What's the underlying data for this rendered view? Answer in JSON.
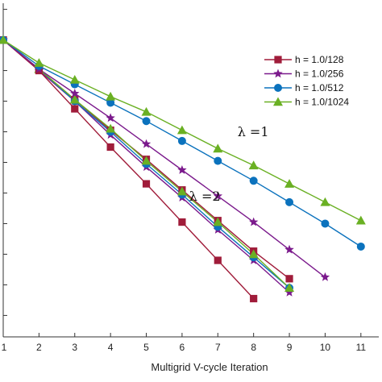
{
  "chart_data": {
    "type": "line",
    "xlabel": "Multigrid V-cycle Iteration",
    "ylabel": "",
    "x_ticks": [
      "1",
      "2",
      "3",
      "4",
      "5",
      "6",
      "7",
      "8",
      "9",
      "10",
      "11"
    ],
    "xlim": [
      1,
      11.5
    ],
    "y_scale": "log",
    "ylim": [
      -9.7,
      1.2
    ],
    "y_minor_ticks": [
      -9,
      -8,
      -7,
      -6,
      -5,
      -4,
      -3,
      -2,
      -1,
      0,
      1
    ],
    "legend_placement": "top-right",
    "series": [
      {
        "name": "h = 1.0/128",
        "color": "#a01c3a",
        "marker": "square",
        "x": [
          1,
          2,
          3,
          4,
          5,
          6,
          7,
          8
        ],
        "log10_y": [
          0,
          -1.0,
          -2.25,
          -3.5,
          -4.7,
          -5.95,
          -7.2,
          -8.45
        ]
      },
      {
        "name": "h = 1.0/256",
        "color": "#7b1a8c",
        "marker": "star",
        "x": [
          1,
          2,
          3,
          4,
          5,
          6,
          7,
          8,
          9,
          10
        ],
        "log10_y": [
          0,
          -0.95,
          -1.75,
          -2.55,
          -3.4,
          -4.25,
          -5.1,
          -5.95,
          -6.85,
          -7.75
        ]
      },
      {
        "name": "h = 1.0/512",
        "color": "#0b72bd",
        "marker": "circle",
        "x": [
          1,
          2,
          3,
          4,
          5,
          6,
          7,
          8,
          9,
          10,
          11
        ],
        "log10_y": [
          0,
          -0.85,
          -1.45,
          -2.05,
          -2.65,
          -3.3,
          -3.95,
          -4.6,
          -5.3,
          -6.0,
          -6.75
        ]
      },
      {
        "name": "h = 1.0/1024",
        "color": "#6ab023",
        "marker": "triangle",
        "x": [
          1,
          2,
          3,
          4,
          5,
          6,
          7,
          8,
          9,
          10,
          11
        ],
        "log10_y": [
          0,
          -0.75,
          -1.3,
          -1.85,
          -2.35,
          -2.95,
          -3.55,
          -4.1,
          -4.7,
          -5.3,
          -5.9
        ]
      }
    ],
    "secondary_series": [
      {
        "color": "#a01c3a",
        "marker": "square",
        "x": [
          1,
          2,
          3,
          4,
          5,
          6,
          7,
          8,
          9
        ],
        "log10_y": [
          0,
          -0.95,
          -1.95,
          -2.95,
          -3.9,
          -4.9,
          -5.9,
          -6.9,
          -7.8
        ]
      },
      {
        "color": "#7b1a8c",
        "marker": "star",
        "x": [
          1,
          2,
          3,
          4,
          5,
          6,
          7,
          8,
          9
        ],
        "log10_y": [
          0,
          -1.0,
          -2.0,
          -3.1,
          -4.15,
          -5.15,
          -6.2,
          -7.2,
          -8.25
        ]
      },
      {
        "color": "#0b72bd",
        "marker": "circle",
        "x": [
          1,
          2,
          3,
          4,
          5,
          6,
          7,
          8,
          9
        ],
        "log10_y": [
          0,
          -0.95,
          -2.0,
          -3.0,
          -4.05,
          -5.05,
          -6.1,
          -7.1,
          -8.1
        ]
      },
      {
        "color": "#6ab023",
        "marker": "triangle",
        "x": [
          1,
          2,
          3,
          4,
          5,
          6,
          7,
          8,
          9
        ],
        "log10_y": [
          0,
          -0.95,
          -1.95,
          -2.9,
          -3.95,
          -4.95,
          -5.95,
          -7.0,
          -8.1
        ]
      }
    ],
    "annotations": [
      {
        "text": "λ =1",
        "x": 7.55,
        "log10_y": -3.15
      },
      {
        "text": "λ =2",
        "x": 6.2,
        "log10_y": -5.25
      }
    ]
  }
}
